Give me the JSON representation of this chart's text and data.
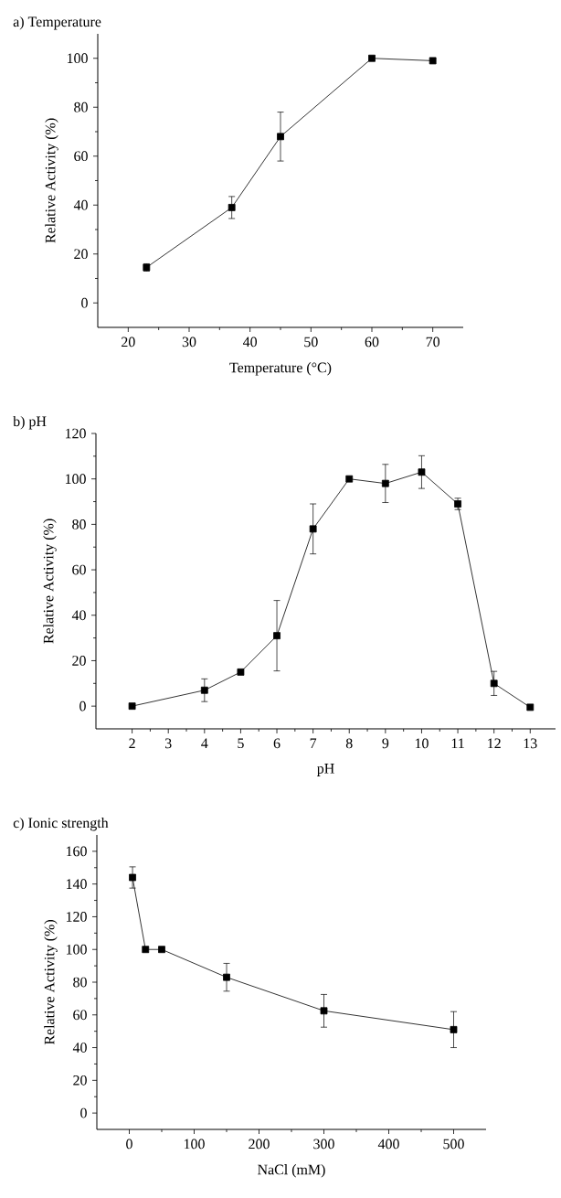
{
  "chart_data": [
    {
      "type": "line",
      "title": "a) Temperature",
      "xlabel": "Temperature (°C)",
      "ylabel": "Relative Activity (%)",
      "marker": "square",
      "line_style": "solid",
      "series": [
        {
          "color": "#000000",
          "x": [
            23,
            37,
            45,
            60,
            70
          ],
          "values": [
            14.5,
            39,
            68,
            100,
            99
          ],
          "errors": [
            1.5,
            4.5,
            10,
            null,
            null
          ]
        }
      ],
      "xlim": [
        15,
        75
      ],
      "ylim": [
        -10,
        110
      ],
      "xticks": [
        20,
        30,
        40,
        50,
        60,
        70
      ],
      "yticks": [
        0,
        20,
        40,
        60,
        80,
        100
      ]
    },
    {
      "type": "line",
      "title": "b) pH",
      "xlabel": "pH",
      "ylabel": "Relative  Activity (%)",
      "marker": "square",
      "line_style": "solid",
      "series": [
        {
          "color": "#000000",
          "x": [
            2,
            4,
            5,
            6,
            7,
            8,
            9,
            10,
            11,
            12,
            13
          ],
          "values": [
            0,
            7,
            15,
            31,
            78,
            100,
            98,
            103,
            89,
            10,
            -0.5
          ],
          "errors": [
            null,
            5,
            null,
            15.5,
            11,
            null,
            8.4,
            7.2,
            2.5,
            5.3,
            null
          ]
        }
      ],
      "xlim": [
        1,
        13.7
      ],
      "ylim": [
        -10,
        120
      ],
      "xticks": [
        2,
        3,
        4,
        5,
        6,
        7,
        8,
        9,
        10,
        11,
        12,
        13
      ],
      "yticks": [
        0,
        20,
        40,
        60,
        80,
        100,
        120
      ]
    },
    {
      "type": "line",
      "title": "c) Ionic strength",
      "xlabel": "NaCl (mM)",
      "ylabel": "Relative Activity (%)",
      "marker": "square",
      "line_style": "solid",
      "series": [
        {
          "color": "#000000",
          "x": [
            5,
            25,
            50,
            150,
            300,
            500
          ],
          "values": [
            144,
            100,
            100,
            83,
            62.5,
            51
          ],
          "errors": [
            6.5,
            null,
            null,
            8.5,
            10,
            11
          ]
        }
      ],
      "xlim": [
        -50,
        550
      ],
      "ylim": [
        -10,
        170
      ],
      "xticks": [
        0,
        100,
        200,
        300,
        400,
        500
      ],
      "yticks": [
        0,
        20,
        40,
        60,
        80,
        100,
        120,
        140,
        160
      ]
    }
  ]
}
